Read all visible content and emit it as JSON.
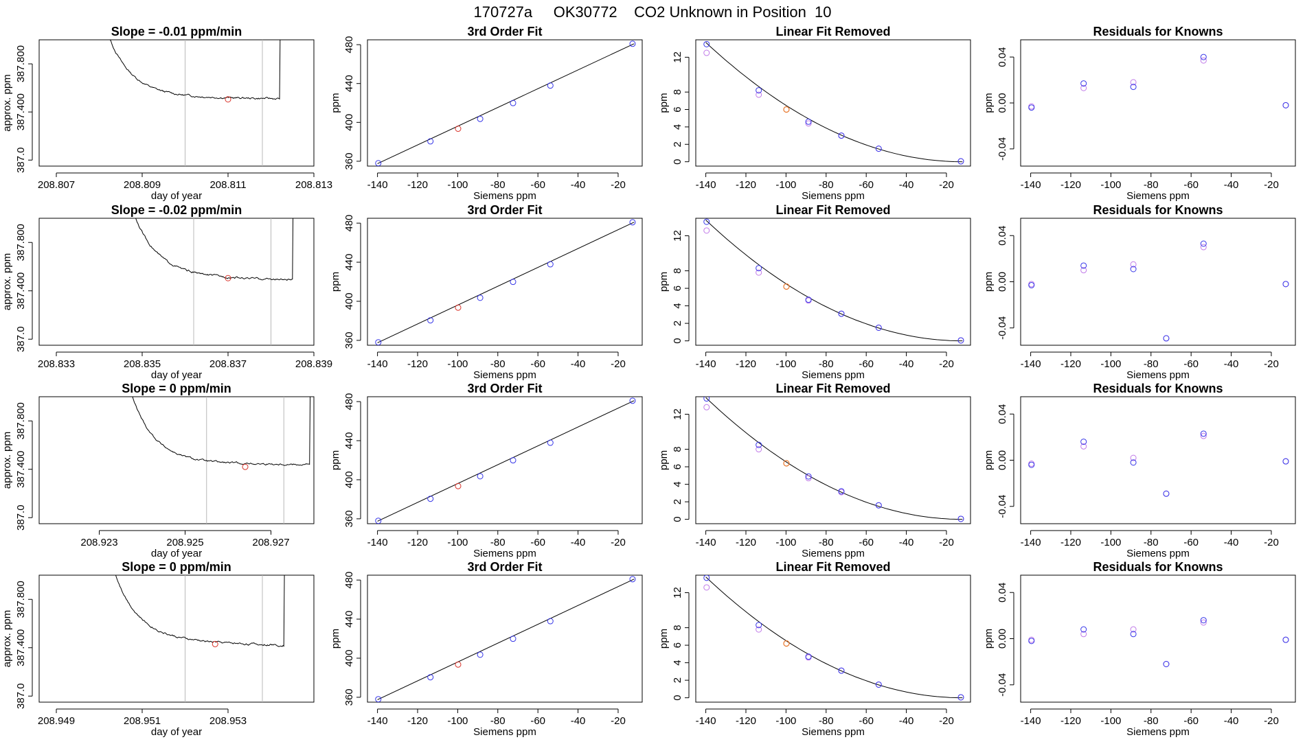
{
  "figure": {
    "title": "170727a     OK30772    CO2 Unknown in Position  10"
  },
  "chart_data": [
    {
      "type": "line",
      "title": "Slope =  -0.01  ppm/min",
      "xlabel": "day of year",
      "ylabel": "approx. ppm",
      "xlim": [
        208.8066,
        208.813
      ],
      "ylim": [
        386.95,
        388.0
      ],
      "xticks": [
        208.807,
        208.809,
        208.811,
        208.813
      ],
      "yticks": [
        387.0,
        387.4,
        387.8
      ],
      "vlines": [
        208.81,
        208.8118
      ],
      "trace": {
        "t_rise": 208.808,
        "plateau": 387.53,
        "t_end": 208.8122,
        "plateau_end": 387.51
      },
      "marker": {
        "x": 208.811,
        "y": 387.505
      }
    },
    {
      "type": "scatter",
      "title": "3rd Order Fit",
      "xlabel": "Siemens ppm",
      "ylabel": "ppm",
      "xlim": [
        -145,
        -8
      ],
      "ylim": [
        355,
        485
      ],
      "xticks": [
        -140,
        -120,
        -100,
        -80,
        -60,
        -40,
        -20
      ],
      "yticks": [
        360,
        400,
        440,
        480
      ],
      "knowns": {
        "x": [
          -139.6,
          -113.6,
          -88.8,
          -72.4,
          -53.8,
          -12.8
        ],
        "y": [
          358.0,
          380.5,
          403.6,
          419.9,
          437.9,
          480.9
        ]
      },
      "unknown": {
        "x": [
          -99.8
        ],
        "y": [
          393.5
        ]
      },
      "curve": {
        "x": [
          -140,
          -12
        ],
        "y": [
          357.5,
          481.0
        ]
      }
    },
    {
      "type": "scatter",
      "title": "Linear Fit Removed",
      "xlabel": "Siemens ppm",
      "ylabel": "ppm",
      "xlim": [
        -145,
        -8
      ],
      "ylim": [
        -0.5,
        14.0
      ],
      "xticks": [
        -140,
        -120,
        -100,
        -80,
        -60,
        -40,
        -20
      ],
      "yticks": [
        0,
        2,
        4,
        6,
        8,
        12
      ],
      "knowns_a": {
        "x": [
          -139.6,
          -113.6,
          -88.8,
          -72.4,
          -53.8,
          -12.8
        ],
        "y": [
          13.5,
          8.2,
          4.6,
          3.0,
          1.5,
          0.05
        ]
      },
      "knowns_b": {
        "x": [
          -139.6,
          -113.6,
          -88.8,
          -72.4,
          -53.8,
          -12.8
        ],
        "y": [
          12.5,
          7.7,
          4.4,
          3.0,
          1.5,
          0.05
        ]
      },
      "unknown": {
        "x": [
          -99.8
        ],
        "y": [
          6.0
        ]
      },
      "curve": {
        "x0": -140,
        "x1": -12,
        "y0": 13.7
      }
    },
    {
      "type": "scatter",
      "title": "Residuals for Knowns",
      "xlabel": "Siemens ppm",
      "ylabel": "ppm",
      "xlim": [
        -145,
        -8
      ],
      "ylim": [
        -0.055,
        0.055
      ],
      "xticks": [
        -140,
        -120,
        -100,
        -80,
        -60,
        -40,
        -20
      ],
      "yticks": [
        -0.04,
        0.0,
        0.04
      ],
      "residuals_a": {
        "x": [
          -139.6,
          -113.6,
          -88.8,
          -53.8,
          -12.8
        ],
        "y": [
          -0.004,
          0.017,
          0.014,
          0.04,
          -0.002
        ]
      },
      "residuals_b": {
        "x": [
          -139.6,
          -113.6,
          -88.8,
          -53.8,
          -12.8
        ],
        "y": [
          -0.003,
          0.013,
          0.018,
          0.037,
          -0.002
        ]
      }
    },
    {
      "type": "line",
      "title": "Slope =  -0.02  ppm/min",
      "xlabel": "day of year",
      "ylabel": "approx. ppm",
      "xlim": [
        208.8326,
        208.839
      ],
      "ylim": [
        386.95,
        388.0
      ],
      "xticks": [
        208.833,
        208.835,
        208.837,
        208.839
      ],
      "yticks": [
        387.0,
        387.4,
        387.8
      ],
      "vlines": [
        208.8362,
        208.838
      ],
      "trace": {
        "t_rise": 208.8346,
        "plateau": 387.53,
        "t_end": 208.8385,
        "plateau_end": 387.49
      },
      "marker": {
        "x": 208.837,
        "y": 387.505
      }
    },
    {
      "type": "scatter",
      "title": "3rd Order Fit",
      "xlabel": "Siemens ppm",
      "ylabel": "ppm",
      "xlim": [
        -145,
        -8
      ],
      "ylim": [
        355,
        485
      ],
      "xticks": [
        -140,
        -120,
        -100,
        -80,
        -60,
        -40,
        -20
      ],
      "yticks": [
        360,
        400,
        440,
        480
      ],
      "knowns": {
        "x": [
          -139.6,
          -113.6,
          -88.8,
          -72.4,
          -53.8,
          -12.8
        ],
        "y": [
          358.0,
          380.5,
          403.6,
          419.9,
          437.9,
          480.9
        ]
      },
      "unknown": {
        "x": [
          -99.8
        ],
        "y": [
          393.5
        ]
      },
      "curve": {
        "x": [
          -140,
          -12
        ],
        "y": [
          357.5,
          481.0
        ]
      }
    },
    {
      "type": "scatter",
      "title": "Linear Fit Removed",
      "xlabel": "Siemens ppm",
      "ylabel": "ppm",
      "xlim": [
        -145,
        -8
      ],
      "ylim": [
        -0.5,
        14.0
      ],
      "xticks": [
        -140,
        -120,
        -100,
        -80,
        -60,
        -40,
        -20
      ],
      "yticks": [
        0,
        2,
        4,
        6,
        8,
        12
      ],
      "knowns_a": {
        "x": [
          -139.6,
          -113.6,
          -88.8,
          -72.4,
          -53.8,
          -12.8
        ],
        "y": [
          13.6,
          8.3,
          4.7,
          3.1,
          1.5,
          0.05
        ]
      },
      "knowns_b": {
        "x": [
          -139.6,
          -113.6,
          -88.8,
          -72.4,
          -53.8,
          -12.8
        ],
        "y": [
          12.6,
          7.8,
          4.6,
          3.1,
          1.5,
          0.05
        ]
      },
      "unknown": {
        "x": [
          -99.8
        ],
        "y": [
          6.2
        ]
      },
      "curve": {
        "x0": -140,
        "x1": -12,
        "y0": 13.8
      }
    },
    {
      "type": "scatter",
      "title": "Residuals for Knowns",
      "xlabel": "Siemens ppm",
      "ylabel": "ppm",
      "xlim": [
        -145,
        -8
      ],
      "ylim": [
        -0.055,
        0.055
      ],
      "xticks": [
        -140,
        -120,
        -100,
        -80,
        -60,
        -40,
        -20
      ],
      "yticks": [
        -0.04,
        0.0,
        0.04
      ],
      "residuals_a": {
        "x": [
          -139.6,
          -113.6,
          -88.8,
          -72.4,
          -53.8,
          -12.8
        ],
        "y": [
          -0.003,
          0.014,
          0.011,
          -0.049,
          0.033,
          -0.002
        ]
      },
      "residuals_b": {
        "x": [
          -139.6,
          -113.6,
          -88.8,
          -72.4,
          -53.8,
          -12.8
        ],
        "y": [
          -0.002,
          0.01,
          0.015,
          -0.049,
          0.03,
          -0.002
        ]
      }
    },
    {
      "type": "line",
      "title": "Slope =  0  ppm/min",
      "xlabel": "day of year",
      "ylabel": "approx. ppm",
      "xlim": [
        208.9216,
        208.928
      ],
      "ylim": [
        386.95,
        388.0
      ],
      "xticks": [
        208.923,
        208.925,
        208.927
      ],
      "yticks": [
        387.0,
        387.4,
        387.8
      ],
      "vlines": [
        208.9255,
        208.9273
      ],
      "trace": {
        "t_rise": 208.9236,
        "plateau": 387.45,
        "t_end": 208.9279,
        "plateau_end": 387.44
      },
      "marker": {
        "x": 208.9264,
        "y": 387.42
      }
    },
    {
      "type": "scatter",
      "title": "3rd Order Fit",
      "xlabel": "Siemens ppm",
      "ylabel": "ppm",
      "xlim": [
        -145,
        -8
      ],
      "ylim": [
        355,
        485
      ],
      "xticks": [
        -140,
        -120,
        -100,
        -80,
        -60,
        -40,
        -20
      ],
      "yticks": [
        360,
        400,
        440,
        480
      ],
      "knowns": {
        "x": [
          -139.6,
          -113.6,
          -88.8,
          -72.4,
          -53.8,
          -12.8
        ],
        "y": [
          358.0,
          380.5,
          403.6,
          419.9,
          437.9,
          480.9
        ]
      },
      "unknown": {
        "x": [
          -99.8
        ],
        "y": [
          393.5
        ]
      },
      "curve": {
        "x": [
          -140,
          -12
        ],
        "y": [
          357.5,
          481.0
        ]
      }
    },
    {
      "type": "scatter",
      "title": "Linear Fit Removed",
      "xlabel": "Siemens ppm",
      "ylabel": "ppm",
      "xlim": [
        -145,
        -8
      ],
      "ylim": [
        -0.5,
        14.0
      ],
      "xticks": [
        -140,
        -120,
        -100,
        -80,
        -60,
        -40,
        -20
      ],
      "yticks": [
        0,
        2,
        4,
        6,
        8,
        12
      ],
      "knowns_a": {
        "x": [
          -139.6,
          -113.6,
          -88.8,
          -72.4,
          -53.8,
          -12.8
        ],
        "y": [
          13.8,
          8.5,
          4.9,
          3.2,
          1.6,
          0.05
        ]
      },
      "knowns_b": {
        "x": [
          -139.6,
          -113.6,
          -88.8,
          -72.4,
          -53.8,
          -12.8
        ],
        "y": [
          12.8,
          8.0,
          4.7,
          3.1,
          1.6,
          0.05
        ]
      },
      "unknown": {
        "x": [
          -99.8
        ],
        "y": [
          6.4
        ]
      },
      "curve": {
        "x0": -140,
        "x1": -12,
        "y0": 13.9
      }
    },
    {
      "type": "scatter",
      "title": "Residuals for Knowns",
      "xlabel": "Siemens ppm",
      "ylabel": "ppm",
      "xlim": [
        -145,
        -8
      ],
      "ylim": [
        -0.055,
        0.055
      ],
      "xticks": [
        -140,
        -120,
        -100,
        -80,
        -60,
        -40,
        -20
      ],
      "yticks": [
        -0.04,
        0.0,
        0.04
      ],
      "residuals_a": {
        "x": [
          -139.6,
          -113.6,
          -88.8,
          -72.4,
          -53.8,
          -12.8
        ],
        "y": [
          -0.004,
          0.016,
          -0.002,
          -0.029,
          0.023,
          -0.001
        ]
      },
      "residuals_b": {
        "x": [
          -139.6,
          -113.6,
          -88.8,
          -72.4,
          -53.8,
          -12.8
        ],
        "y": [
          -0.003,
          0.012,
          0.002,
          -0.029,
          0.021,
          -0.001
        ]
      }
    },
    {
      "type": "line",
      "title": "Slope =  0  ppm/min",
      "xlabel": "day of year",
      "ylabel": "approx. ppm",
      "xlim": [
        208.9486,
        208.955
      ],
      "ylim": [
        386.95,
        388.0
      ],
      "xticks": [
        208.949,
        208.951,
        208.953
      ],
      "yticks": [
        387.0,
        387.4,
        387.8
      ],
      "vlines": [
        208.952,
        208.9538
      ],
      "trace": {
        "t_rise": 208.9502,
        "plateau": 387.47,
        "t_end": 208.9543,
        "plateau_end": 387.42
      },
      "marker": {
        "x": 208.9527,
        "y": 387.43
      }
    },
    {
      "type": "scatter",
      "title": "3rd Order Fit",
      "xlabel": "Siemens ppm",
      "ylabel": "ppm",
      "xlim": [
        -145,
        -8
      ],
      "ylim": [
        355,
        485
      ],
      "xticks": [
        -140,
        -120,
        -100,
        -80,
        -60,
        -40,
        -20
      ],
      "yticks": [
        360,
        400,
        440,
        480
      ],
      "knowns": {
        "x": [
          -139.6,
          -113.6,
          -88.8,
          -72.4,
          -53.8,
          -12.8
        ],
        "y": [
          358.0,
          380.5,
          403.6,
          419.9,
          437.9,
          480.9
        ]
      },
      "unknown": {
        "x": [
          -99.8
        ],
        "y": [
          393.5
        ]
      },
      "curve": {
        "x": [
          -140,
          -12
        ],
        "y": [
          357.5,
          481.0
        ]
      }
    },
    {
      "type": "scatter",
      "title": "Linear Fit Removed",
      "xlabel": "Siemens ppm",
      "ylabel": "ppm",
      "xlim": [
        -145,
        -8
      ],
      "ylim": [
        -0.5,
        14.0
      ],
      "xticks": [
        -140,
        -120,
        -100,
        -80,
        -60,
        -40,
        -20
      ],
      "yticks": [
        0,
        2,
        4,
        6,
        8,
        12
      ],
      "knowns_a": {
        "x": [
          -139.6,
          -113.6,
          -88.8,
          -72.4,
          -53.8,
          -12.8
        ],
        "y": [
          13.7,
          8.3,
          4.7,
          3.1,
          1.5,
          0.05
        ]
      },
      "knowns_b": {
        "x": [
          -139.6,
          -113.6,
          -88.8,
          -72.4,
          -53.8,
          -12.8
        ],
        "y": [
          12.6,
          7.8,
          4.6,
          3.1,
          1.5,
          0.05
        ]
      },
      "unknown": {
        "x": [
          -99.8
        ],
        "y": [
          6.2
        ]
      },
      "curve": {
        "x0": -140,
        "x1": -12,
        "y0": 13.8
      }
    },
    {
      "type": "scatter",
      "title": "Residuals for Knowns",
      "xlabel": "Siemens ppm",
      "ylabel": "ppm",
      "xlim": [
        -145,
        -8
      ],
      "ylim": [
        -0.055,
        0.055
      ],
      "xticks": [
        -140,
        -120,
        -100,
        -80,
        -60,
        -40,
        -20
      ],
      "yticks": [
        -0.04,
        0.0,
        0.04
      ],
      "residuals_a": {
        "x": [
          -139.6,
          -113.6,
          -88.8,
          -72.4,
          -53.8,
          -12.8
        ],
        "y": [
          -0.002,
          0.008,
          0.004,
          -0.022,
          0.016,
          -0.001
        ]
      },
      "residuals_b": {
        "x": [
          -139.6,
          -113.6,
          -88.8,
          -72.4,
          -53.8,
          -12.8
        ],
        "y": [
          -0.001,
          0.004,
          0.008,
          -0.022,
          0.014,
          -0.001
        ]
      }
    }
  ],
  "colors": {
    "axis": "#000000",
    "trace": "#000000",
    "vline": "#b8b8b8",
    "unknown_marker": "#d9342b",
    "knowns_a": "#3535e8",
    "knowns_b": "#c07ae8",
    "unknown_fit": "#e8762a"
  }
}
